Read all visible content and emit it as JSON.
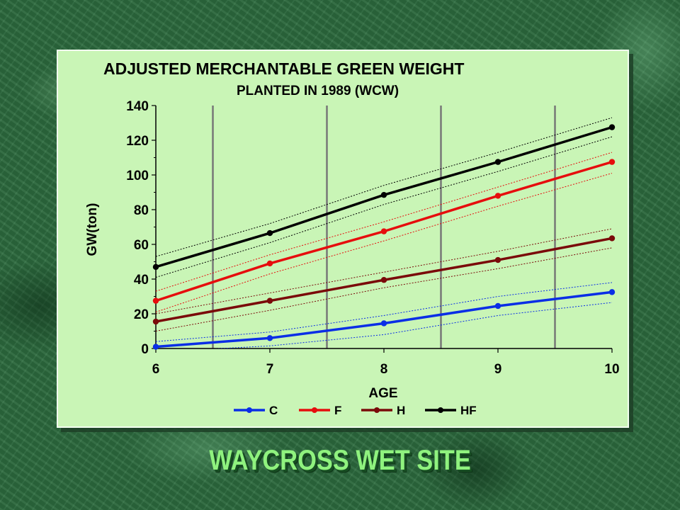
{
  "footer_title": "WAYCROSS WET SITE",
  "chart_data": {
    "type": "line",
    "title": "ADJUSTED MERCHANTABLE GREEN WEIGHT",
    "subtitle": "PLANTED IN 1989 (WCW)",
    "xlabel": "AGE",
    "ylabel": "GW(ton)",
    "x": [
      6,
      7,
      8,
      9,
      10
    ],
    "xlim": [
      6,
      10
    ],
    "ylim": [
      0,
      140
    ],
    "x_ticks": [
      "6",
      "7",
      "8",
      "9",
      "10"
    ],
    "y_ticks": [
      "0",
      "20",
      "40",
      "60",
      "80",
      "100",
      "120",
      "140"
    ],
    "grid": true,
    "legend_position": "bottom",
    "colors": {
      "plot_background": "#c9f5b6",
      "vertical_grid": "#777777",
      "C": "#0a2ee6",
      "F": "#e60d0d",
      "H": "#7a0a0a",
      "HF": "#000000"
    },
    "series": [
      {
        "name": "C",
        "values": [
          1,
          6,
          14.5,
          24.5,
          32.5
        ],
        "upper": [
          4,
          9.5,
          19,
          30,
          38
        ],
        "lower": [
          -2,
          1.5,
          8,
          19,
          26.5
        ]
      },
      {
        "name": "F",
        "values": [
          27.5,
          49,
          67.5,
          88,
          107.5
        ],
        "upper": [
          33,
          54,
          73,
          93,
          113
        ],
        "lower": [
          21,
          43,
          62,
          82,
          101
        ]
      },
      {
        "name": "H",
        "values": [
          15.5,
          27.5,
          39.5,
          51,
          63.5
        ],
        "upper": [
          20,
          32,
          44,
          56,
          69
        ],
        "lower": [
          10,
          22,
          35,
          46,
          58
        ]
      },
      {
        "name": "HF",
        "values": [
          47,
          66.5,
          88.5,
          107.5,
          127.5
        ],
        "upper": [
          53,
          72,
          94,
          113,
          133
        ],
        "lower": [
          41,
          61,
          83,
          102,
          122
        ]
      }
    ]
  }
}
